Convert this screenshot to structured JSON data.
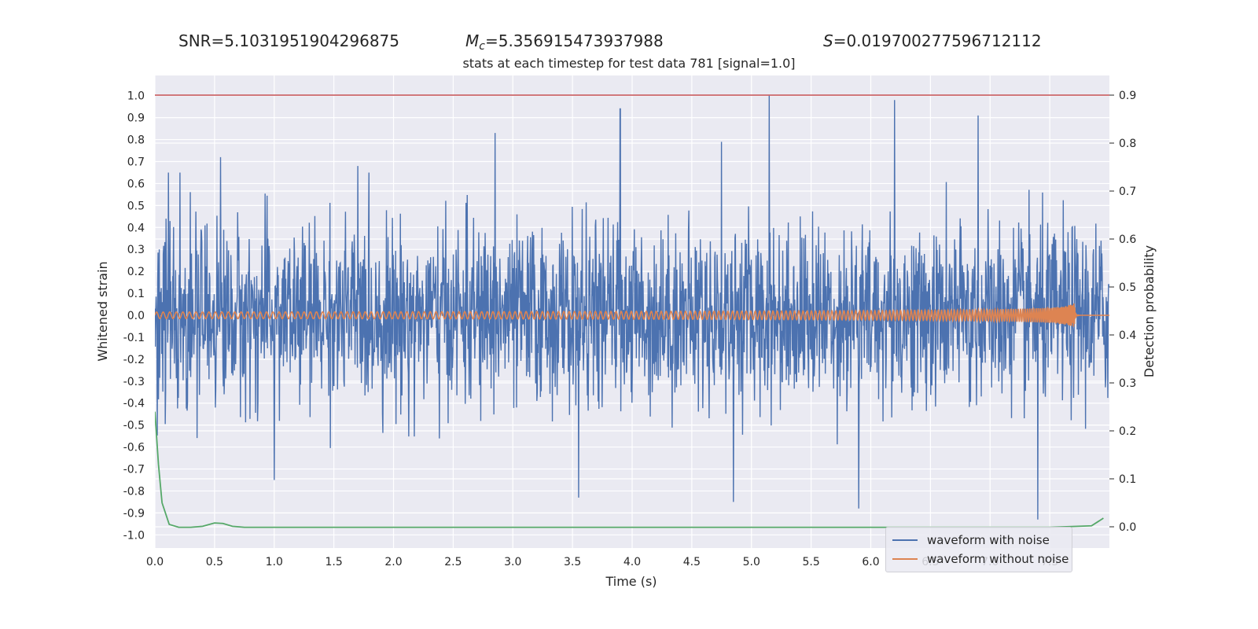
{
  "header": {
    "snr_text": "SNR=5.1031951904296875",
    "mc_symbol": "M",
    "mc_subscript": "c",
    "mc_value": "=5.356915473937988",
    "s_symbol": "S",
    "s_value": "=0.019700277596712112"
  },
  "chart_data": {
    "type": "line",
    "title": "stats at each timestep for test data 781 [signal=1.0]",
    "xlabel": "Time (s)",
    "ylabel": "Whitened strain",
    "y2label": "Detection probability",
    "xlim": [
      0.0,
      8.0
    ],
    "ylim": [
      -1.08,
      1.08
    ],
    "y2lim": [
      -0.045,
      0.935
    ],
    "x_ticks": [
      "0.0",
      "0.5",
      "1.0",
      "1.5",
      "2.0",
      "2.5",
      "3.0",
      "3.5",
      "4.0",
      "4.5",
      "5.0",
      "5.5",
      "6.0",
      "6.5",
      "7.0",
      "7.5"
    ],
    "y_ticks": [
      "1.0",
      "0.9",
      "0.8",
      "0.7",
      "0.6",
      "0.5",
      "0.4",
      "0.3",
      "0.2",
      "0.1",
      "0.0",
      "-0.1",
      "-0.2",
      "-0.3",
      "-0.4",
      "-0.5",
      "-0.6",
      "-0.7",
      "-0.8",
      "-0.9",
      "-1.0"
    ],
    "y2_ticks": [
      "0.9",
      "0.8",
      "0.7",
      "0.6",
      "0.5",
      "0.4",
      "0.3",
      "0.2",
      "0.1",
      "0.0"
    ],
    "threshold": 0.9,
    "grid": true,
    "legend_position": "lower-right",
    "series": [
      {
        "name": "waveform with noise",
        "color": "#4c72b0",
        "description_of_values": "noisy strain, typical envelope about ±0.45, peaks up to 1.0 near 5.15 s and -0.93 near 7.4 s",
        "envelope": 0.45,
        "peaks": [
          [
            0.55,
            0.72
          ],
          [
            1.7,
            0.68
          ],
          [
            2.85,
            0.83
          ],
          [
            3.9,
            0.94
          ],
          [
            4.75,
            0.79
          ],
          [
            5.15,
            1.0
          ],
          [
            6.2,
            0.98
          ],
          [
            6.9,
            0.91
          ],
          [
            1.0,
            -0.75
          ],
          [
            3.55,
            -0.83
          ],
          [
            4.85,
            -0.85
          ],
          [
            5.9,
            -0.88
          ],
          [
            7.4,
            -0.93
          ]
        ]
      },
      {
        "name": "waveform without noise",
        "color": "#dd8452",
        "chirp_start": 0.0,
        "chirp_merger": 7.7,
        "chirp_end": 8.0,
        "amplitude_start": 0.015,
        "amplitude_peak": 0.12
      },
      {
        "name": "",
        "axis": "right",
        "color": "#55a868",
        "x": [
          0.0,
          0.03,
          0.06,
          0.12,
          0.2,
          0.3,
          0.4,
          0.5,
          0.57,
          0.65,
          0.75,
          1.0,
          2.0,
          3.0,
          4.0,
          5.0,
          6.0,
          7.0,
          7.5,
          7.85,
          7.95
        ],
        "y": [
          0.24,
          0.13,
          0.05,
          0.005,
          -0.001,
          -0.001,
          0.001,
          0.008,
          0.007,
          0.001,
          -0.001,
          -0.001,
          -0.001,
          -0.001,
          -0.001,
          -0.001,
          -0.001,
          -0.001,
          -0.001,
          0.002,
          0.018
        ]
      },
      {
        "name": "",
        "color": "#c44e52",
        "kind": "threshold-line"
      }
    ]
  }
}
